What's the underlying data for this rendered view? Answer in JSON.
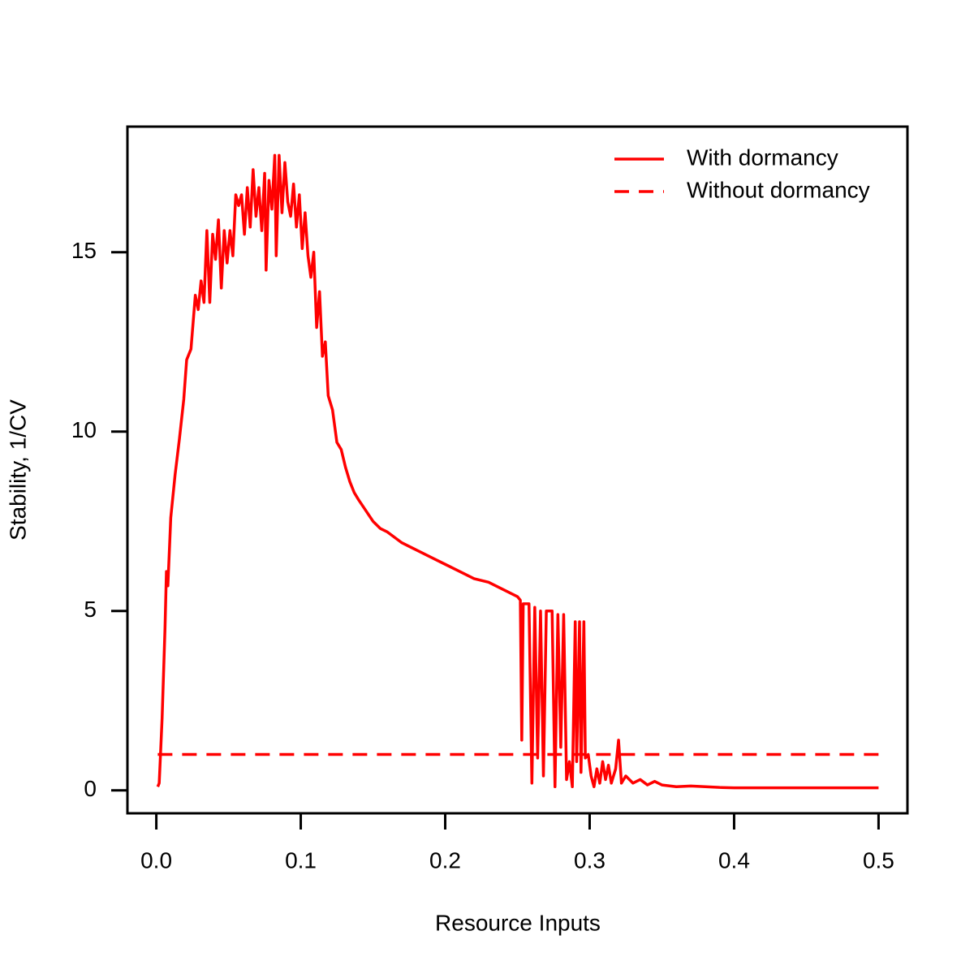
{
  "chart_data": {
    "type": "line",
    "xlabel": "Resource Inputs",
    "ylabel": "Stability, 1/CV",
    "xlim": [
      -0.02,
      0.52
    ],
    "ylim": [
      -0.64,
      18.5
    ],
    "xticks": [
      {
        "value": 0,
        "label": "0.0"
      },
      0.1,
      0.2,
      0.3,
      0.4,
      0.5
    ],
    "yticks": [
      0,
      5,
      10,
      15
    ],
    "grid": false,
    "legend": "top-right",
    "series": [
      {
        "name": "With dormancy",
        "color": "#ff0000",
        "linestyle": "solid",
        "x": [
          0.001,
          0.002,
          0.004,
          0.006,
          0.007,
          0.008,
          0.01,
          0.013,
          0.016,
          0.019,
          0.021,
          0.024,
          0.027,
          0.029,
          0.031,
          0.033,
          0.035,
          0.037,
          0.039,
          0.041,
          0.043,
          0.045,
          0.047,
          0.049,
          0.051,
          0.053,
          0.055,
          0.057,
          0.059,
          0.061,
          0.063,
          0.065,
          0.067,
          0.069,
          0.071,
          0.073,
          0.075,
          0.076,
          0.078,
          0.08,
          0.082,
          0.083,
          0.085,
          0.087,
          0.089,
          0.091,
          0.093,
          0.095,
          0.097,
          0.099,
          0.101,
          0.103,
          0.105,
          0.107,
          0.109,
          0.111,
          0.113,
          0.115,
          0.117,
          0.119,
          0.122,
          0.125,
          0.128,
          0.131,
          0.134,
          0.137,
          0.14,
          0.145,
          0.15,
          0.155,
          0.16,
          0.17,
          0.18,
          0.19,
          0.2,
          0.21,
          0.22,
          0.23,
          0.24,
          0.25,
          0.252,
          0.253,
          0.254,
          0.258,
          0.26,
          0.262,
          0.264,
          0.266,
          0.268,
          0.27,
          0.272,
          0.274,
          0.276,
          0.278,
          0.28,
          0.282,
          0.284,
          0.286,
          0.288,
          0.29,
          0.291,
          0.293,
          0.294,
          0.296,
          0.297,
          0.299,
          0.301,
          0.303,
          0.305,
          0.307,
          0.309,
          0.311,
          0.313,
          0.315,
          0.318,
          0.32,
          0.322,
          0.325,
          0.33,
          0.335,
          0.34,
          0.345,
          0.35,
          0.36,
          0.37,
          0.38,
          0.39,
          0.4,
          0.45,
          0.5
        ],
        "values": [
          0.1,
          0.2,
          2,
          4.5,
          6.1,
          5.7,
          7.6,
          8.8,
          9.8,
          10.9,
          12,
          12.3,
          13.8,
          13.4,
          14.2,
          13.6,
          15.6,
          13.6,
          15.5,
          14.8,
          15.9,
          14,
          15.6,
          14.7,
          15.6,
          14.9,
          16.6,
          16.3,
          16.6,
          15.5,
          16.8,
          15.7,
          17.3,
          16,
          16.8,
          15.6,
          17.2,
          14.5,
          17,
          16.2,
          17.7,
          14.9,
          17.7,
          16.1,
          17.5,
          16.4,
          16,
          16.9,
          15.7,
          16.6,
          15.1,
          16.1,
          14.9,
          14.3,
          15,
          12.9,
          13.9,
          12.1,
          12.5,
          11,
          10.6,
          9.7,
          9.5,
          9,
          8.6,
          8.3,
          8.1,
          7.8,
          7.5,
          7.3,
          7.2,
          6.9,
          6.7,
          6.5,
          6.3,
          6.1,
          5.9,
          5.8,
          5.6,
          5.4,
          5.3,
          1.4,
          5.2,
          5.2,
          0.2,
          5.1,
          0.9,
          5,
          0.4,
          5,
          5,
          5,
          0.1,
          4.9,
          1.2,
          4.9,
          0.3,
          0.8,
          0.1,
          4.7,
          0.8,
          4.7,
          0.5,
          4.7,
          0.9,
          1,
          0.4,
          0.1,
          0.6,
          0.2,
          0.8,
          0.3,
          0.7,
          0.2,
          0.6,
          1.4,
          0.2,
          0.4,
          0.2,
          0.3,
          0.15,
          0.25,
          0.15,
          0.1,
          0.12,
          0.1,
          0.08,
          0.07,
          0.07,
          0.07
        ]
      },
      {
        "name": "Without dormancy",
        "color": "#ff0000",
        "linestyle": "dashed",
        "x": [
          0.001,
          0.5
        ],
        "values": [
          1,
          1
        ]
      }
    ]
  }
}
